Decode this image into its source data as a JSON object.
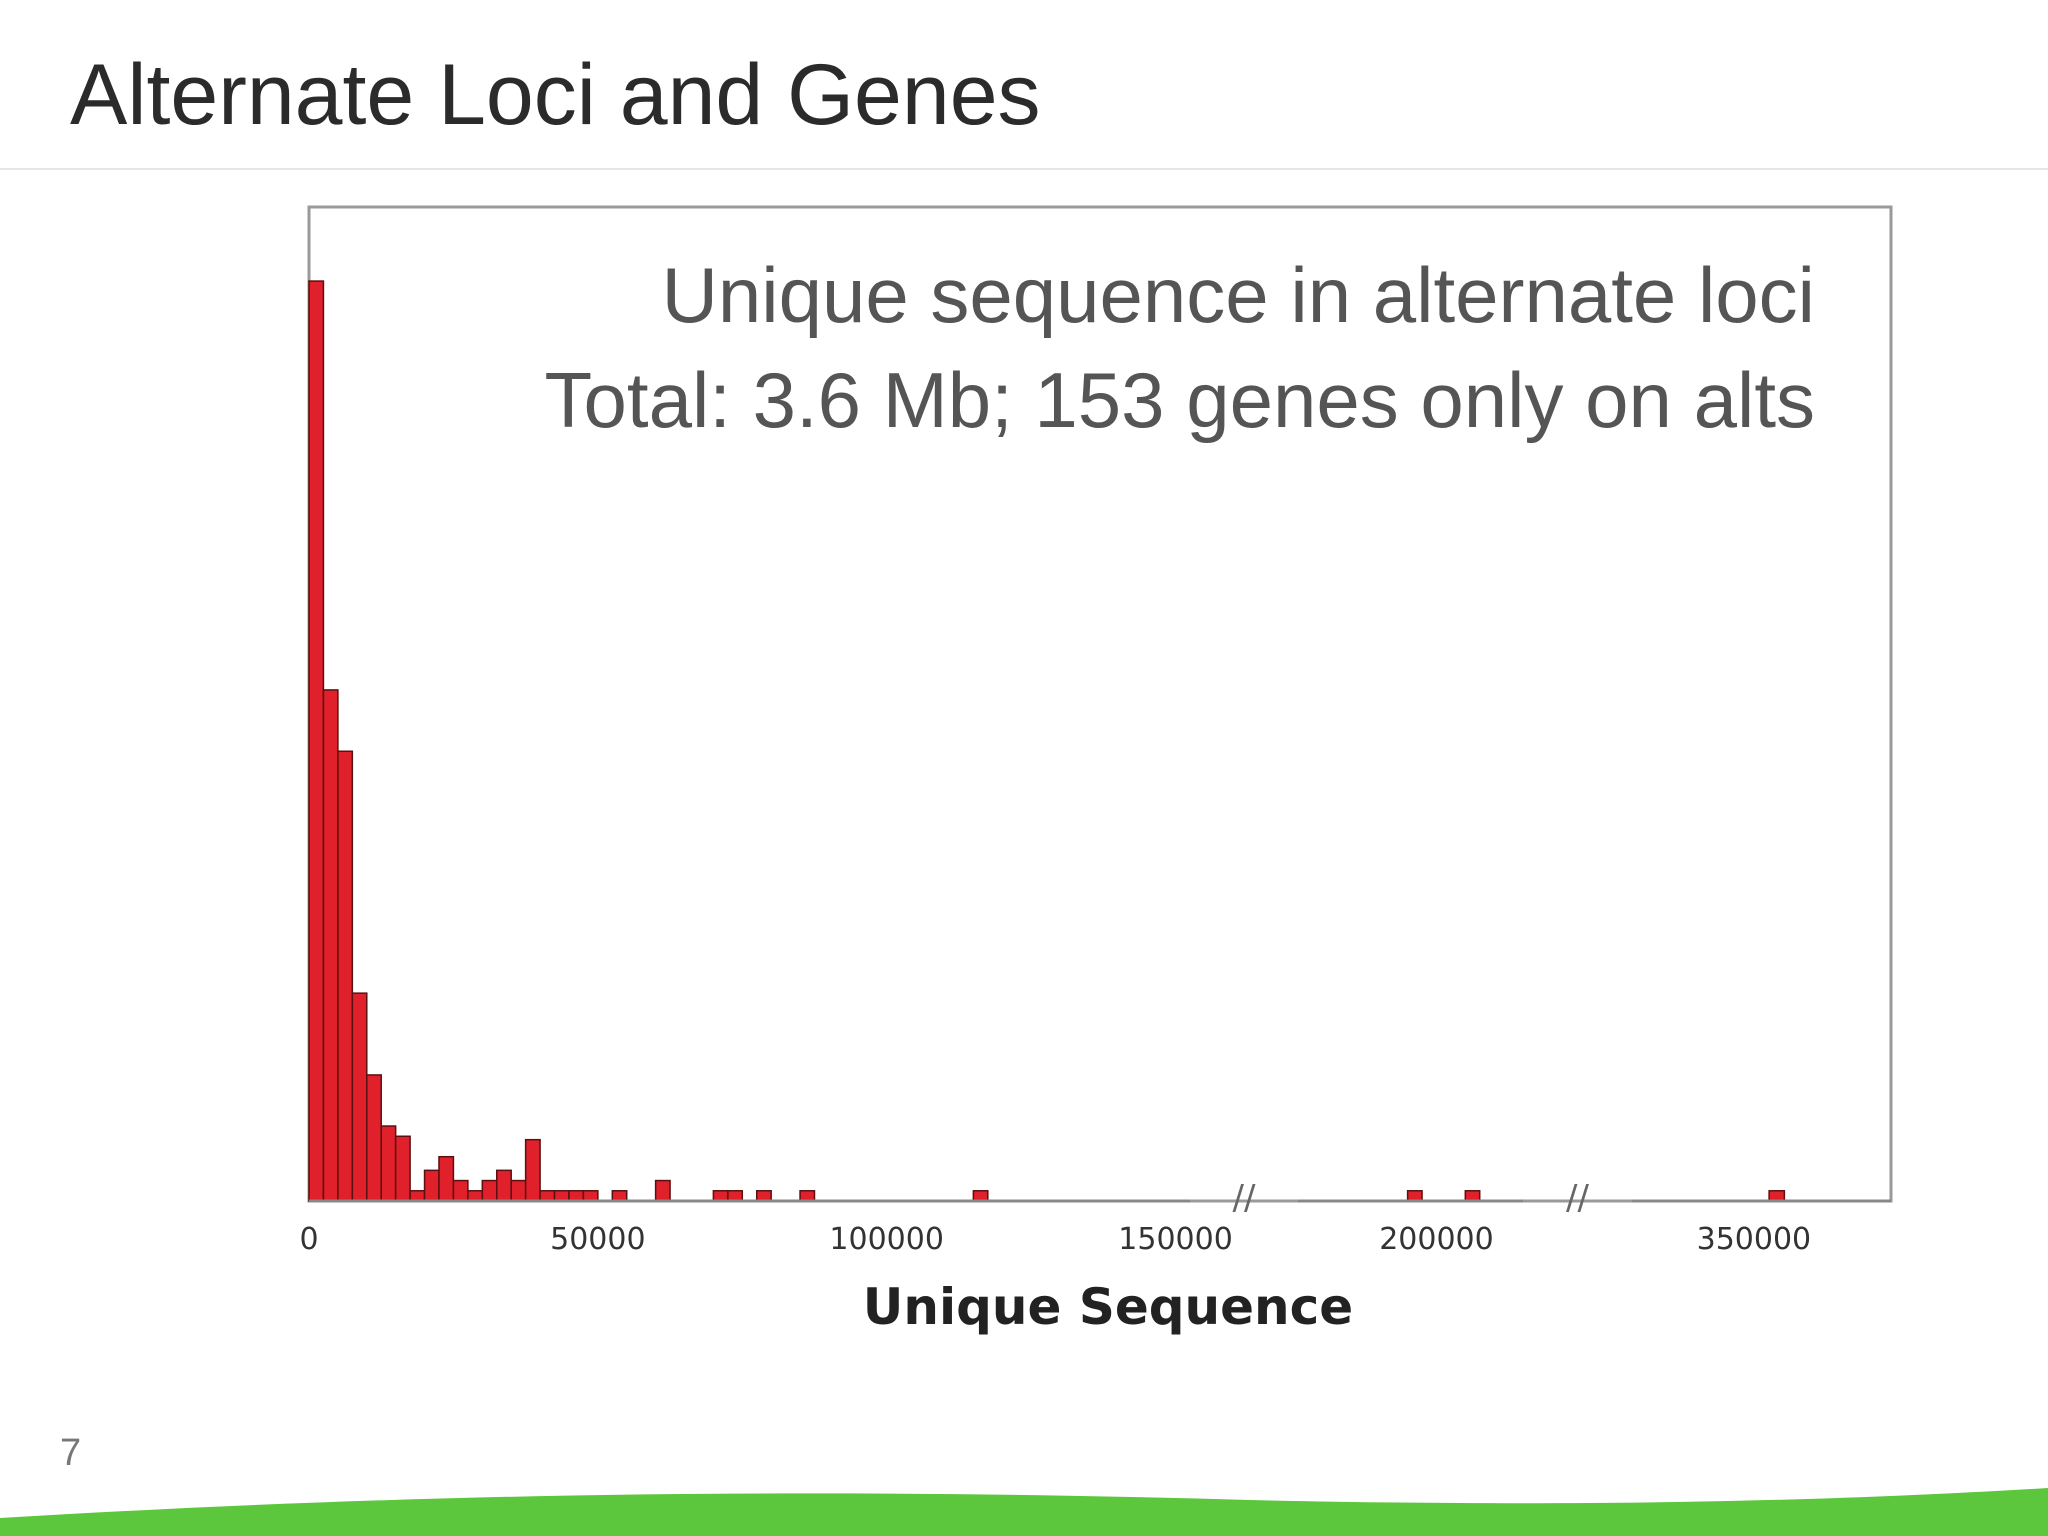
{
  "slide": {
    "title": "Alternate Loci and Genes",
    "page_number": "7"
  },
  "colors": {
    "bar_fill": "#e0202a",
    "bar_stroke": "#5a1010",
    "frame": "#9a9a9a",
    "annotation_text": "#555555",
    "wave": "#5cc63c"
  },
  "chart_data": {
    "type": "bar",
    "histogram": true,
    "title": "",
    "xlabel": "Unique Sequence",
    "ylabel": "",
    "annotation_lines": [
      "Unique sequence in alternate loci",
      "Total: 3.6 Mb; 153 genes only on alts"
    ],
    "bin_width": 2500,
    "x_segments": [
      {
        "start": 0,
        "end": 152500
      },
      {
        "start": 176000,
        "end": 215000
      },
      {
        "start": 330000,
        "end": 372500
      }
    ],
    "axis_breaks_after_segment": [
      0,
      1
    ],
    "break_symbol": "//",
    "x_ticks": [
      0,
      50000,
      100000,
      150000,
      200000,
      350000
    ],
    "x_tick_labels": [
      "0",
      "50000",
      "100000",
      "150000",
      "200000",
      "350000"
    ],
    "ylim": [
      0,
      28
    ],
    "grid": false,
    "bins": [
      {
        "x": 0,
        "count": 27
      },
      {
        "x": 2500,
        "count": 15
      },
      {
        "x": 5000,
        "count": 13.2
      },
      {
        "x": 7500,
        "count": 6.1
      },
      {
        "x": 10000,
        "count": 3.7
      },
      {
        "x": 12500,
        "count": 2.2
      },
      {
        "x": 15000,
        "count": 1.9
      },
      {
        "x": 17500,
        "count": 0.3
      },
      {
        "x": 20000,
        "count": 0.9
      },
      {
        "x": 22500,
        "count": 1.3
      },
      {
        "x": 25000,
        "count": 0.6
      },
      {
        "x": 27500,
        "count": 0.3
      },
      {
        "x": 30000,
        "count": 0.6
      },
      {
        "x": 32500,
        "count": 0.9
      },
      {
        "x": 35000,
        "count": 0.6
      },
      {
        "x": 37500,
        "count": 1.8
      },
      {
        "x": 40000,
        "count": 0.3
      },
      {
        "x": 42500,
        "count": 0.3
      },
      {
        "x": 45000,
        "count": 0.3
      },
      {
        "x": 47500,
        "count": 0.3
      },
      {
        "x": 52500,
        "count": 0.3
      },
      {
        "x": 60000,
        "count": 0.6
      },
      {
        "x": 70000,
        "count": 0.3
      },
      {
        "x": 72500,
        "count": 0.3
      },
      {
        "x": 77500,
        "count": 0.3
      },
      {
        "x": 85000,
        "count": 0.3
      },
      {
        "x": 115000,
        "count": 0.3
      },
      {
        "x": 195000,
        "count": 0.3
      },
      {
        "x": 205000,
        "count": 0.3
      },
      {
        "x": 352500,
        "count": 0.3
      }
    ]
  }
}
